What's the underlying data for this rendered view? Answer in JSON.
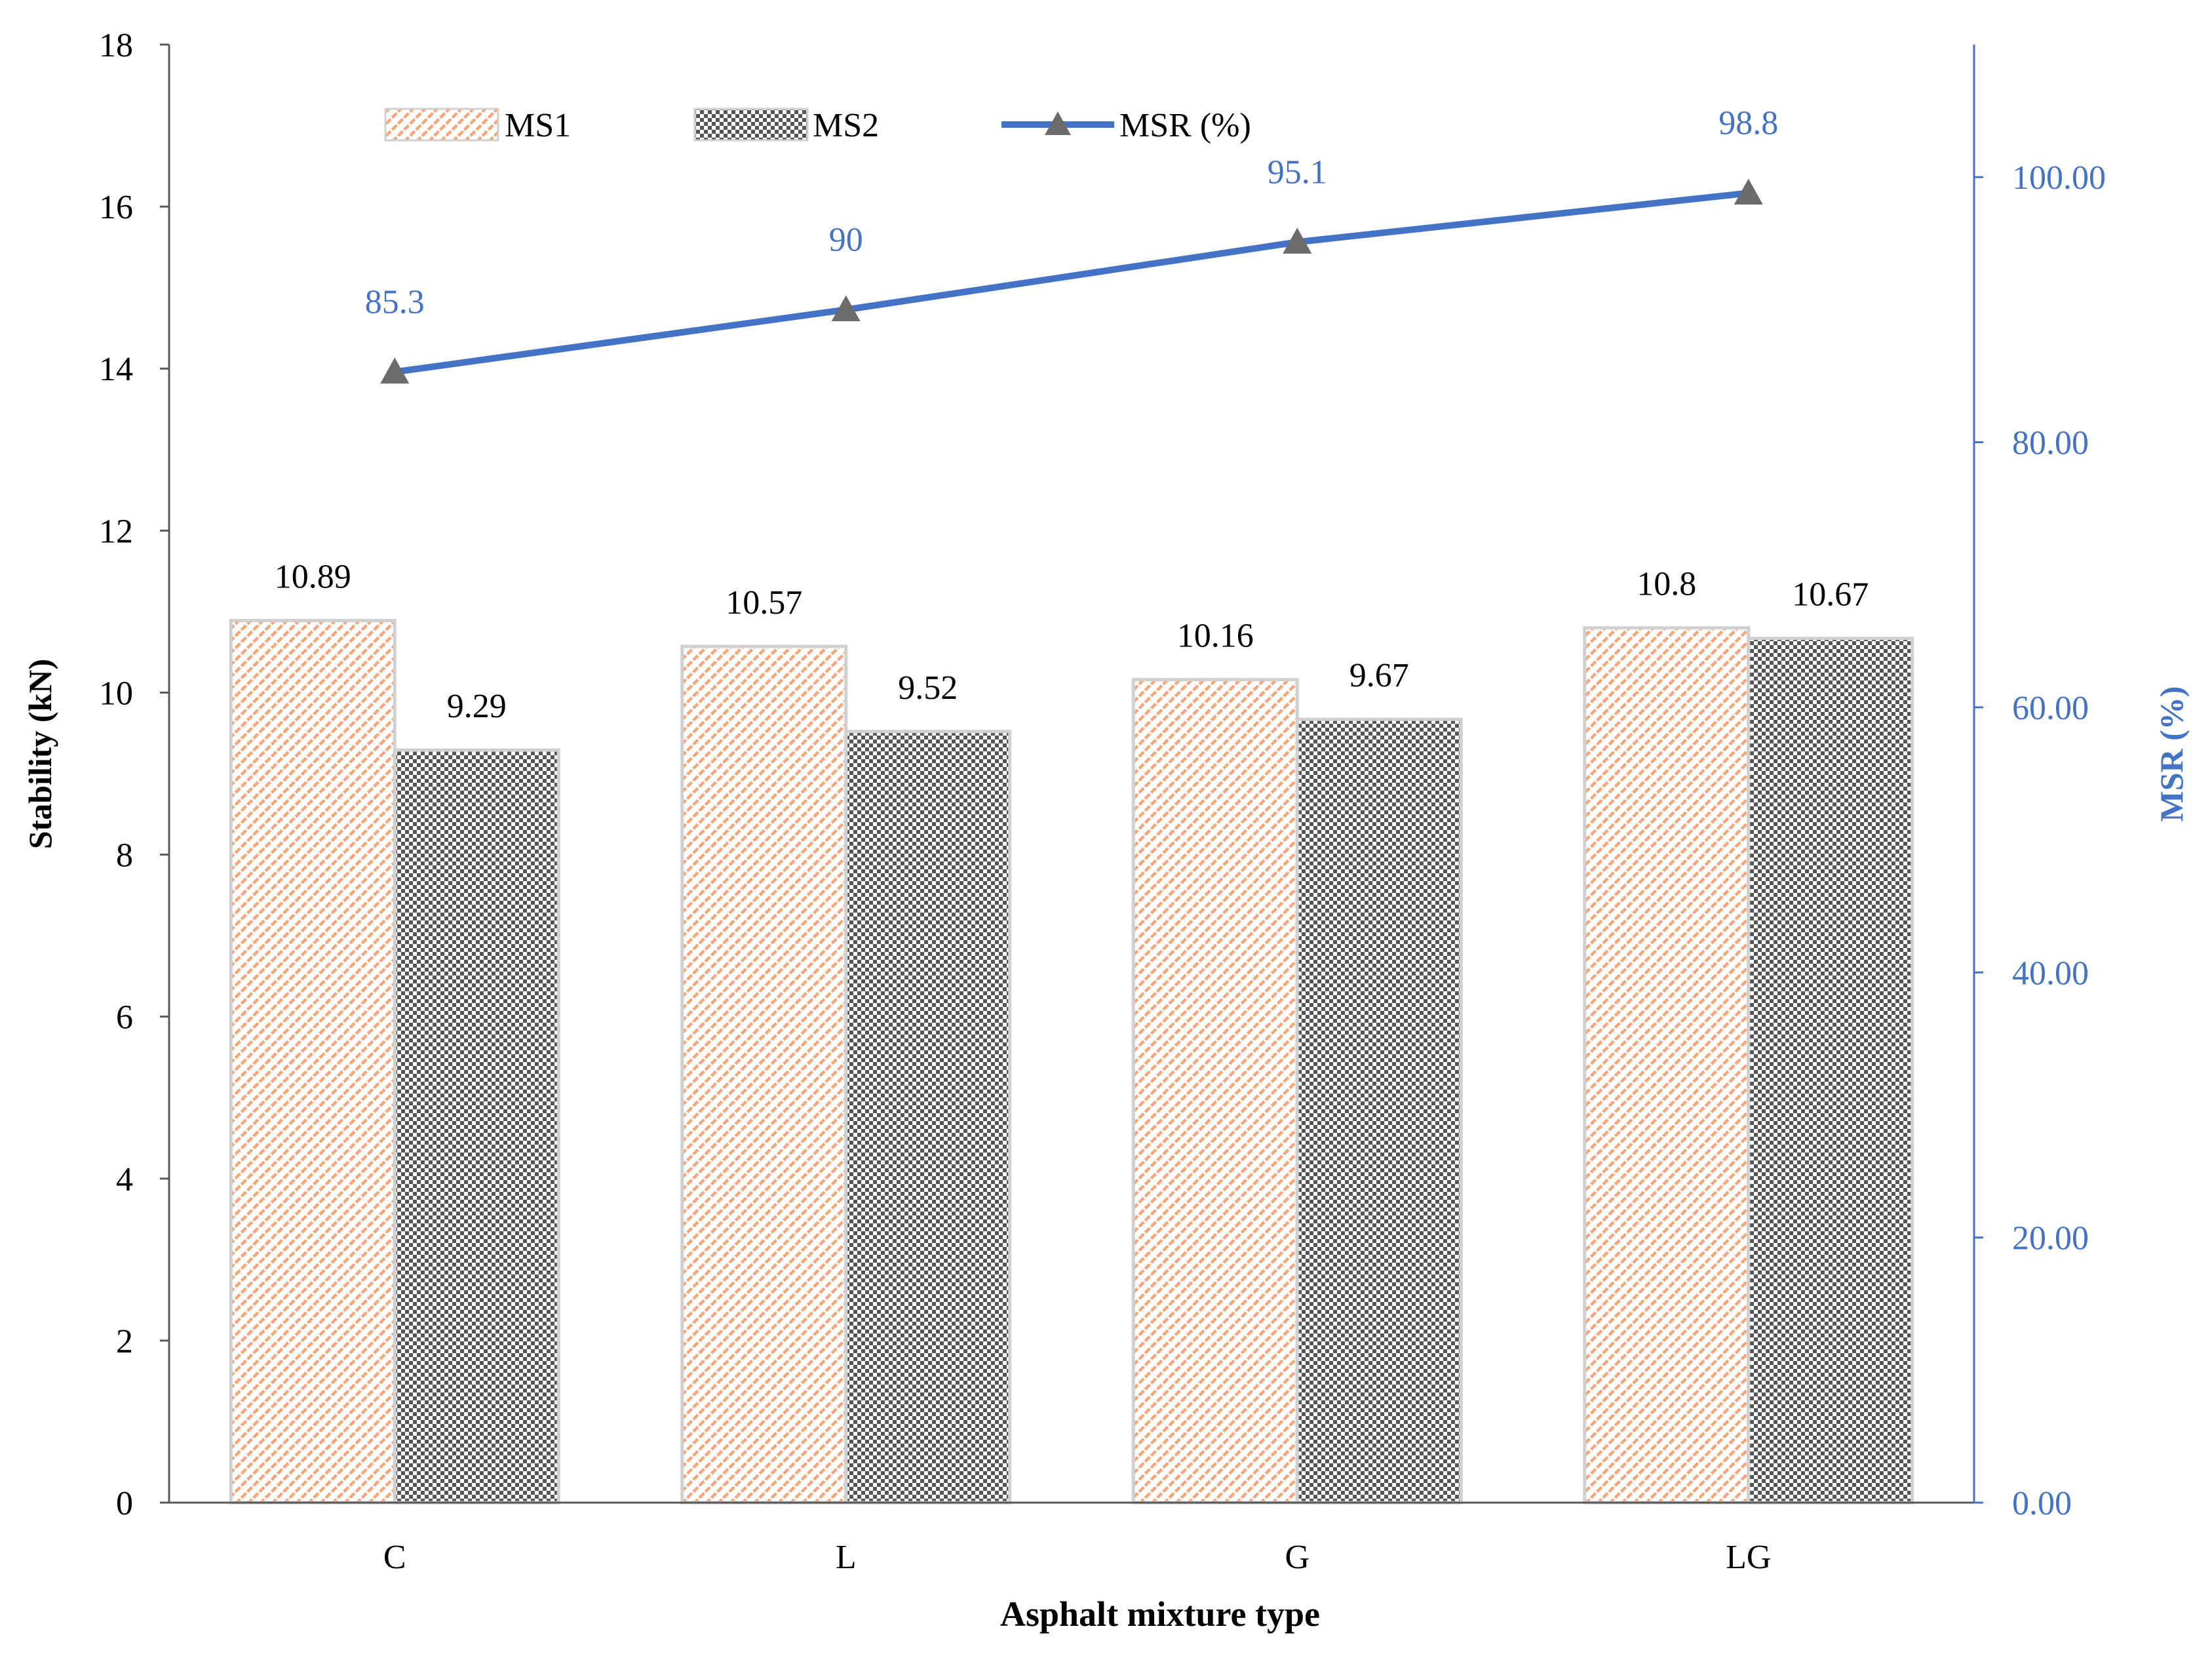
{
  "chart_data": {
    "type": "bar",
    "categories": [
      "C",
      "L",
      "G",
      "LG"
    ],
    "series": [
      {
        "name": "MS1",
        "axis": "left",
        "kind": "bar",
        "values": [
          10.89,
          10.57,
          10.16,
          10.8
        ],
        "labels": [
          "10.89",
          "10.57",
          "10.16",
          "10.8"
        ]
      },
      {
        "name": "MS2",
        "axis": "left",
        "kind": "bar",
        "values": [
          9.29,
          9.52,
          9.67,
          10.67
        ],
        "labels": [
          "9.29",
          "9.52",
          "9.67",
          "10.67"
        ]
      },
      {
        "name": "MSR (%)",
        "axis": "right",
        "kind": "line",
        "values": [
          85.3,
          90,
          95.1,
          98.8
        ],
        "labels": [
          "85.3",
          "90",
          "95.1",
          "98.8"
        ]
      }
    ],
    "xlabel": "Asphalt mixture type",
    "ylabel": "Stability (kN)",
    "y2label": "MSR (%)",
    "ylim": [
      0,
      18
    ],
    "y2lim": [
      0,
      110
    ],
    "yticks": [
      "0",
      "2",
      "4",
      "6",
      "8",
      "10",
      "12",
      "14",
      "16",
      "18"
    ],
    "y2ticks": [
      "0.00",
      "20.00",
      "40.00",
      "60.00",
      "80.00",
      "100.00"
    ],
    "legend": [
      "MS1",
      "MS2",
      "MSR (%)"
    ],
    "grid": false,
    "legend_position": "top"
  },
  "colors": {
    "ms1_stroke": "#f4a57a",
    "ms2_fill": "#555555",
    "line": "#4472c4",
    "line_label": "#4472c4",
    "marker": "#6b6b6b",
    "axis": "#595959",
    "right_axis": "#4472c4",
    "text": "#000000",
    "bar_border": "#d0d0d0"
  }
}
